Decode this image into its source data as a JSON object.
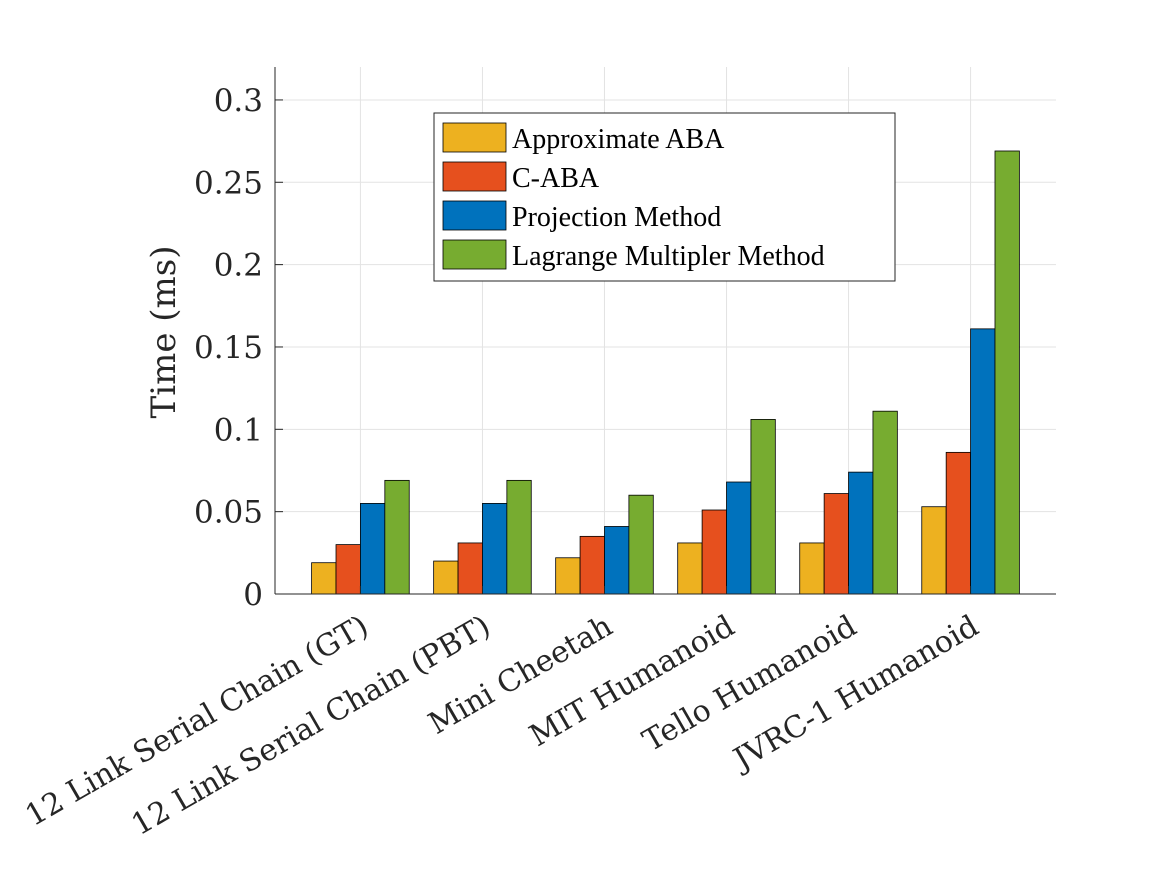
{
  "chart_data": {
    "type": "bar",
    "title": "",
    "xlabel": "",
    "ylabel": "Time (ms)",
    "ylim": [
      0,
      0.32
    ],
    "yticks": [
      0,
      0.05,
      0.1,
      0.15,
      0.2,
      0.25,
      0.3
    ],
    "ytick_labels": [
      "0",
      "0.05",
      "0.1",
      "0.15",
      "0.2",
      "0.25",
      "0.3"
    ],
    "grid": true,
    "legend_position": "top-center",
    "categories": [
      "12 Link Serial Chain (GT)",
      "12 Link Serial Chain (PBT)",
      "Mini Cheetah",
      "MIT Humanoid",
      "Tello Humanoid",
      "JVRC-1 Humanoid"
    ],
    "series": [
      {
        "name": "Approximate ABA",
        "color": "#EDB120",
        "values": [
          0.019,
          0.02,
          0.022,
          0.031,
          0.031,
          0.053
        ]
      },
      {
        "name": "C-ABA",
        "color": "#E6501E",
        "values": [
          0.03,
          0.031,
          0.035,
          0.051,
          0.061,
          0.086
        ]
      },
      {
        "name": "Projection Method",
        "color": "#0072BD",
        "values": [
          0.055,
          0.055,
          0.041,
          0.068,
          0.074,
          0.161
        ]
      },
      {
        "name": "Lagrange Multipler Method",
        "color": "#77AC30",
        "values": [
          0.069,
          0.069,
          0.06,
          0.106,
          0.111,
          0.269
        ]
      }
    ]
  }
}
